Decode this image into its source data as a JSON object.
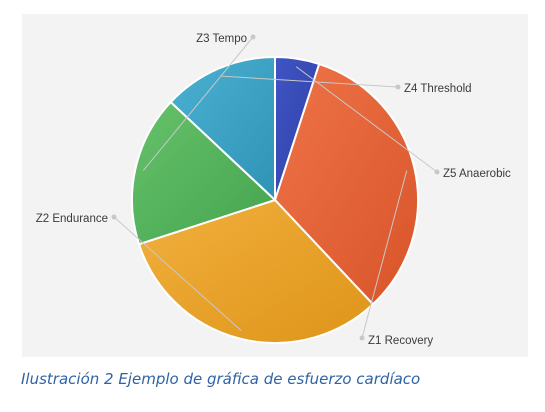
{
  "caption": "Ilustración 2 Ejemplo de gráfica de esfuerzo cardíaco",
  "chart_data": {
    "type": "pie",
    "title": "",
    "unit": "%",
    "start_angle_deg": 90,
    "direction": "clockwise",
    "legend": "none",
    "slices": [
      {
        "label": "Z5 Anaerobic",
        "value": 5,
        "color": "#3f55c4",
        "color_dark": "#2f3fa6"
      },
      {
        "label": "Z1 Recovery",
        "value": 33,
        "color": "#ee7447",
        "color_dark": "#d9542a"
      },
      {
        "label": "Z2 Endurance",
        "value": 32,
        "color": "#f2b03e",
        "color_dark": "#de9418"
      },
      {
        "label": "Z3 Tempo",
        "value": 17,
        "color": "#66c26a",
        "color_dark": "#45a34f"
      },
      {
        "label": "Z4 Threshold",
        "value": 13,
        "color": "#4bb1d1",
        "color_dark": "#2f93b6"
      }
    ]
  }
}
